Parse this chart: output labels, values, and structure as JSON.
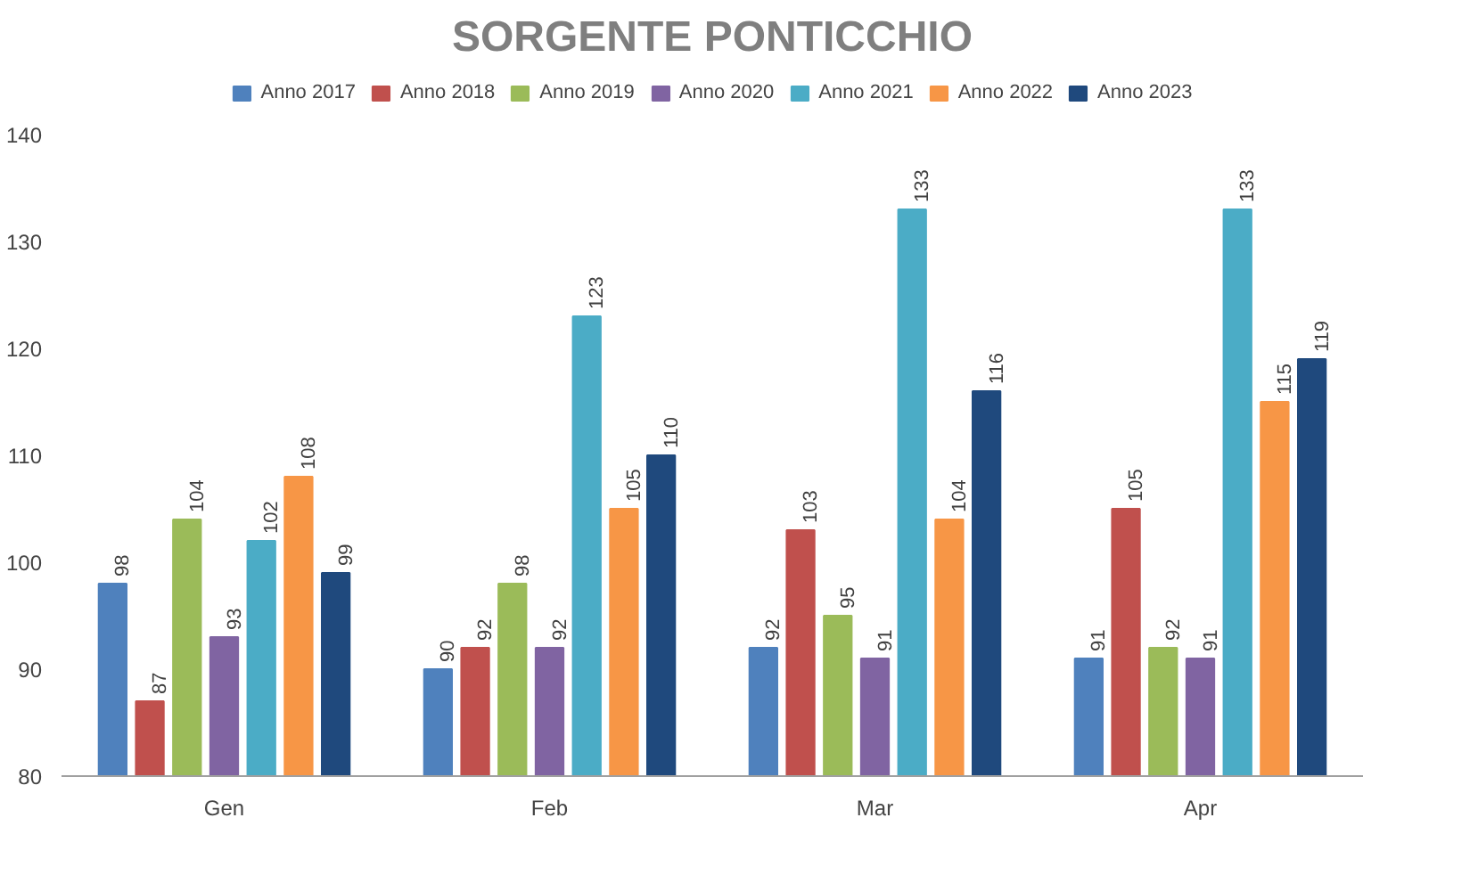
{
  "chart_data": {
    "type": "bar",
    "title": "SORGENTE PONTICCHIO",
    "categories": [
      "Gen",
      "Feb",
      "Mar",
      "Apr"
    ],
    "series": [
      {
        "name": "Anno 2017",
        "color": "#4f81bd",
        "values": [
          98,
          90,
          92,
          91
        ]
      },
      {
        "name": "Anno 2018",
        "color": "#c0504d",
        "values": [
          87,
          92,
          103,
          105
        ]
      },
      {
        "name": "Anno 2019",
        "color": "#9bbb59",
        "values": [
          104,
          98,
          95,
          92
        ]
      },
      {
        "name": "Anno 2020",
        "color": "#8064a2",
        "values": [
          93,
          92,
          91,
          91
        ]
      },
      {
        "name": "Anno 2021",
        "color": "#4bacc6",
        "values": [
          102,
          123,
          133,
          133
        ]
      },
      {
        "name": "Anno 2022",
        "color": "#f79646",
        "values": [
          108,
          105,
          104,
          115
        ]
      },
      {
        "name": "Anno 2023",
        "color": "#1f497d",
        "values": [
          99,
          110,
          116,
          119
        ]
      }
    ],
    "ylim": [
      80,
      140
    ],
    "yticks": [
      80,
      90,
      100,
      110,
      120,
      130,
      140
    ],
    "grid": false,
    "legend": "top",
    "data_labels": true
  }
}
